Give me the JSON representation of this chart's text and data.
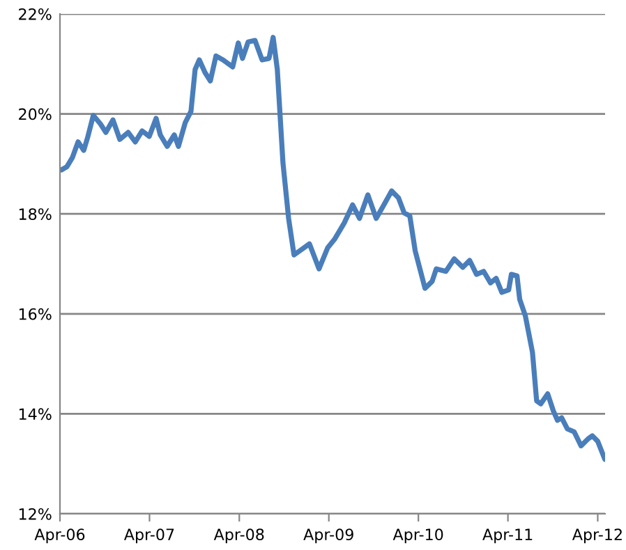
{
  "chart_data": {
    "type": "line",
    "x": [
      "2006-04-07",
      "2006-04-29",
      "2006-05-22",
      "2006-06-14",
      "2006-07-07",
      "2006-07-24",
      "2006-08-15",
      "2006-09-13",
      "2006-10-05",
      "2006-11-03",
      "2006-12-01",
      "2007-01-04",
      "2007-02-02",
      "2007-03-02",
      "2007-03-31",
      "2007-04-28",
      "2007-05-15",
      "2007-06-12",
      "2007-07-11",
      "2007-07-28",
      "2007-08-25",
      "2007-09-17",
      "2007-10-04",
      "2007-10-21",
      "2007-11-13",
      "2007-12-05",
      "2007-12-28",
      "2008-01-26",
      "2008-03-05",
      "2008-03-28",
      "2008-04-14",
      "2008-05-07",
      "2008-06-04",
      "2008-07-03",
      "2008-07-31",
      "2008-08-17",
      "2008-09-03",
      "2008-09-26",
      "2008-10-19",
      "2008-11-10",
      "2008-12-03",
      "2009-01-12",
      "2009-02-20",
      "2009-03-27",
      "2009-04-24",
      "2009-06-03",
      "2009-07-07",
      "2009-08-04",
      "2009-09-07",
      "2009-10-11",
      "2009-11-09",
      "2009-12-13",
      "2010-01-10",
      "2010-02-02",
      "2010-02-25",
      "2010-03-19",
      "2010-04-28",
      "2010-05-27",
      "2010-06-13",
      "2010-07-22",
      "2010-08-25",
      "2010-09-29",
      "2010-10-27",
      "2010-11-24",
      "2010-12-23",
      "2011-01-20",
      "2011-02-12",
      "2011-03-07",
      "2011-04-04",
      "2011-04-15",
      "2011-05-08",
      "2011-05-19",
      "2011-06-11",
      "2011-07-10",
      "2011-07-27",
      "2011-08-13",
      "2011-09-10",
      "2011-10-03",
      "2011-10-20",
      "2011-11-06",
      "2011-11-29",
      "2011-12-27",
      "2012-01-24",
      "2012-02-22",
      "2012-03-10",
      "2012-04-01",
      "2012-04-30"
    ],
    "series": [
      {
        "color": "#4a7ebb",
        "values": [
          18.88,
          18.94,
          19.13,
          19.44,
          19.27,
          19.55,
          19.97,
          19.8,
          19.63,
          19.88,
          19.49,
          19.63,
          19.44,
          19.66,
          19.55,
          19.91,
          19.58,
          19.35,
          19.58,
          19.35,
          19.83,
          20.05,
          20.89,
          21.08,
          20.83,
          20.66,
          21.16,
          21.08,
          20.94,
          21.42,
          21.11,
          21.44,
          21.47,
          21.08,
          21.11,
          21.53,
          20.89,
          19.02,
          17.91,
          17.18,
          17.26,
          17.4,
          16.9,
          17.32,
          17.49,
          17.82,
          18.18,
          17.91,
          18.38,
          17.91,
          18.16,
          18.46,
          18.32,
          18.02,
          17.96,
          17.26,
          16.51,
          16.65,
          16.9,
          16.85,
          17.1,
          16.93,
          17.07,
          16.79,
          16.85,
          16.62,
          16.71,
          16.43,
          16.48,
          16.79,
          16.76,
          16.29,
          15.96,
          15.23,
          14.26,
          14.2,
          14.4,
          14.06,
          13.87,
          13.92,
          13.7,
          13.64,
          13.36,
          13.5,
          13.56,
          13.45,
          13.09
        ]
      }
    ],
    "xlim": [
      "2006-04-01",
      "2012-05-01"
    ],
    "xticks": [
      {
        "value": "2006-04-01",
        "label": "Apr-06"
      },
      {
        "value": "2007-04-01",
        "label": "Apr-07"
      },
      {
        "value": "2008-04-01",
        "label": "Apr-08"
      },
      {
        "value": "2009-04-01",
        "label": "Apr-09"
      },
      {
        "value": "2010-04-01",
        "label": "Apr-10"
      },
      {
        "value": "2011-04-01",
        "label": "Apr-11"
      },
      {
        "value": "2012-04-01",
        "label": "Apr-12"
      }
    ],
    "ylim": [
      12,
      22
    ],
    "yticks": [
      {
        "value": 12,
        "label": "12%"
      },
      {
        "value": 14,
        "label": "14%"
      },
      {
        "value": 16,
        "label": "16%"
      },
      {
        "value": 18,
        "label": "18%"
      },
      {
        "value": 20,
        "label": "20%"
      },
      {
        "value": 22,
        "label": "22%"
      }
    ],
    "grid": "y",
    "marker": "none",
    "line_style": "solid"
  }
}
